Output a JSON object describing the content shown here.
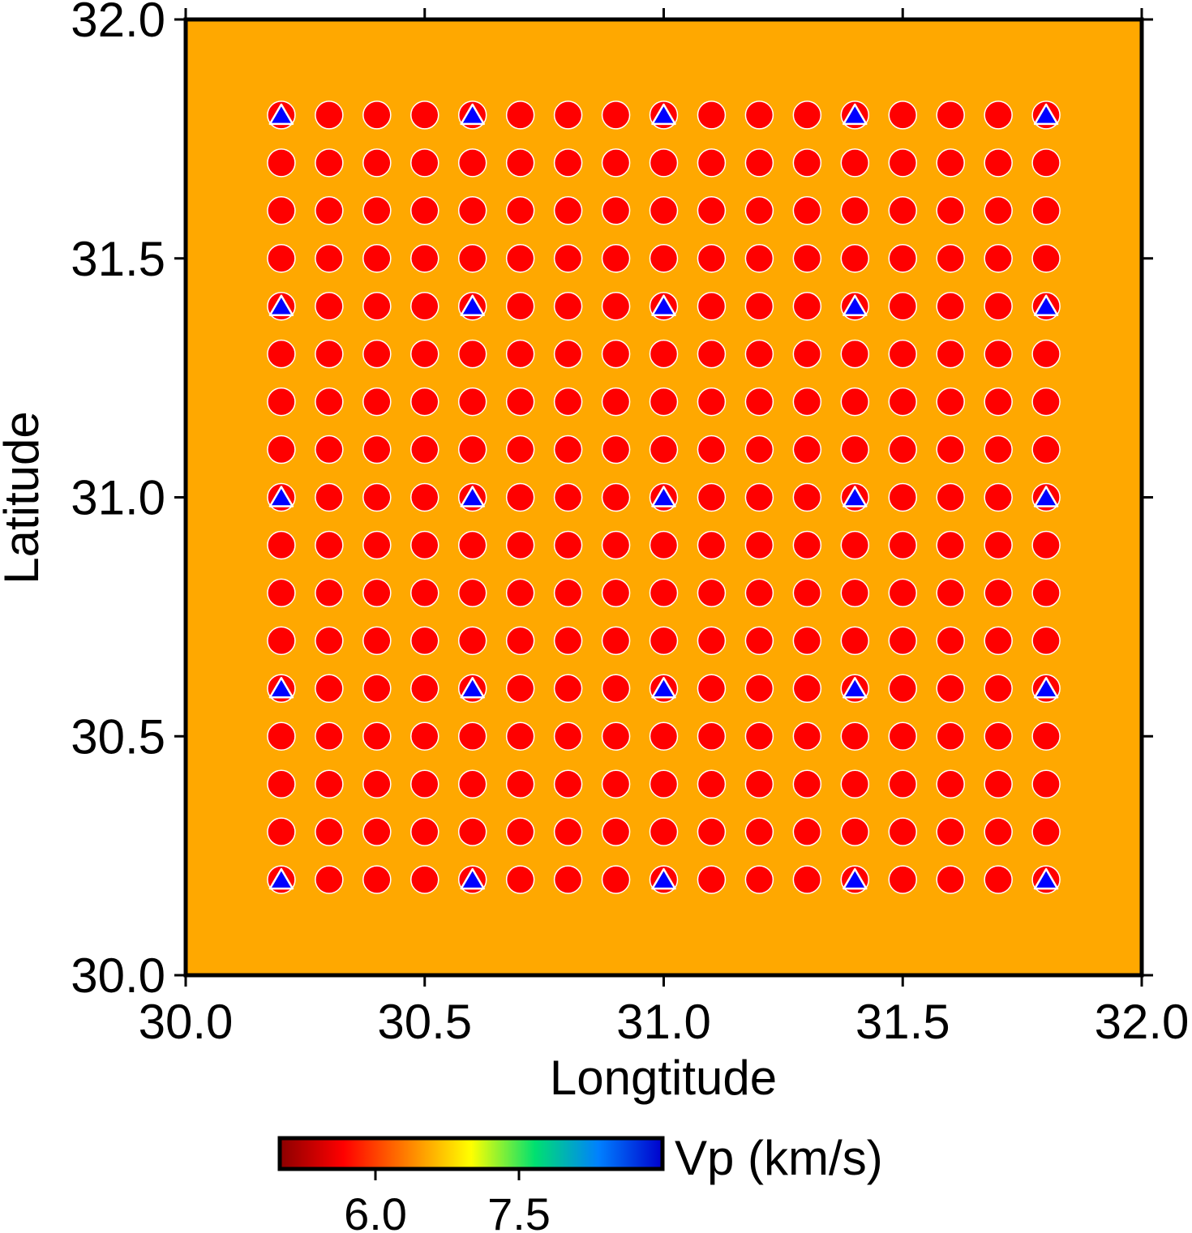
{
  "chart_data": {
    "type": "scatter",
    "title": "",
    "xlabel": "Longtitude",
    "ylabel": "Latitude",
    "xlim": [
      30.0,
      32.0
    ],
    "ylim": [
      30.0,
      32.0
    ],
    "x_ticks": [
      "30.0",
      "30.5",
      "31.0",
      "31.5",
      "32.0"
    ],
    "y_ticks": [
      "30.0",
      "30.5",
      "31.0",
      "31.5",
      "32.0"
    ],
    "grid": false,
    "background_color": "#FFA800",
    "grid_points": {
      "name": "",
      "marker": "circle",
      "color": "#FF0000",
      "x": [
        30.2,
        30.3,
        30.4,
        30.5,
        30.6,
        30.7,
        30.8,
        30.9,
        31.0,
        31.1,
        31.2,
        31.3,
        31.4,
        31.5,
        31.6,
        31.7,
        31.8
      ],
      "y": [
        30.2,
        30.3,
        30.4,
        30.5,
        30.6,
        30.7,
        30.8,
        30.9,
        31.0,
        31.1,
        31.2,
        31.3,
        31.4,
        31.5,
        31.6,
        31.7,
        31.8
      ]
    },
    "stations": {
      "name": "",
      "marker": "triangle",
      "color": "#0000FF",
      "x": [
        30.2,
        30.6,
        31.0,
        31.4,
        31.8
      ],
      "y": [
        30.2,
        30.6,
        31.0,
        31.4,
        31.8
      ]
    },
    "colorbar": {
      "label": "Vp (km/s)",
      "range": [
        5.0,
        9.0
      ],
      "ticks": [
        6.0,
        7.5
      ],
      "tick_labels": [
        "6.0",
        "7.5"
      ],
      "colormap": [
        "#8B0000",
        "#FF0000",
        "#FF8000",
        "#FFFF00",
        "#00E070",
        "#0080FF",
        "#0000CC"
      ]
    }
  }
}
